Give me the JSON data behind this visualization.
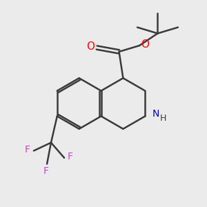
{
  "background_color": "#ebebeb",
  "bond_color": "#3a3a3a",
  "oxygen_color": "#ff0000",
  "nitrogen_color": "#0000cc",
  "fluorine_color": "#cc44cc",
  "line_width": 1.8,
  "figsize": [
    3.0,
    3.0
  ],
  "dpi": 100,
  "xlim": [
    0,
    10
  ],
  "ylim": [
    0,
    10
  ]
}
